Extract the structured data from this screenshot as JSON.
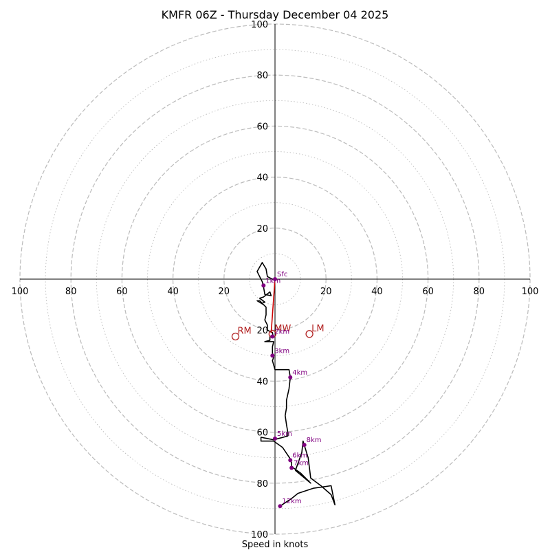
{
  "chart_data": {
    "type": "hodograph",
    "title": "KMFR 06Z - Thursday December 04 2025",
    "xlabel": "Speed in knots",
    "ylabel": "",
    "max_speed": 100,
    "major_rings": [
      20,
      40,
      60,
      80,
      100
    ],
    "minor_rings": [
      10,
      30,
      50,
      70,
      90
    ],
    "x_tick_labels": [
      "100",
      "80",
      "60",
      "40",
      "20",
      "20",
      "40",
      "60",
      "80",
      "100"
    ],
    "y_tick_labels": [
      "100",
      "80",
      "60",
      "40",
      "20",
      "20",
      "40",
      "60",
      "80",
      "100"
    ],
    "colors": {
      "trace": "#000000",
      "markers": "#800080",
      "storm": "#b22222",
      "shear_vector": "#cc0000",
      "grid": "#bbbbbb"
    },
    "trace_uv": [
      [
        0,
        -0.5
      ],
      [
        -3,
        1
      ],
      [
        -3.5,
        4
      ],
      [
        -5,
        6.5
      ],
      [
        -7,
        3
      ],
      [
        -6,
        1
      ],
      [
        -5,
        -1
      ],
      [
        -4.5,
        -3
      ],
      [
        -4,
        -6
      ],
      [
        -1.5,
        -6.5
      ],
      [
        -2,
        -5
      ],
      [
        -4.5,
        -7
      ],
      [
        -6,
        -7.5
      ],
      [
        -4,
        -9
      ],
      [
        -5,
        -9.5
      ],
      [
        -6,
        -8.5
      ],
      [
        -7,
        -8.5
      ],
      [
        -4.5,
        -10
      ],
      [
        -3.5,
        -11
      ],
      [
        -3.5,
        -14
      ],
      [
        -4,
        -16
      ],
      [
        -3,
        -18
      ],
      [
        -3,
        -20
      ],
      [
        -1,
        -21
      ],
      [
        -0.8,
        -22
      ],
      [
        -2,
        -22.5
      ],
      [
        -2,
        -24
      ],
      [
        -4,
        -24.5
      ],
      [
        -0.5,
        -24.5
      ],
      [
        -1,
        -26.5
      ],
      [
        -1,
        -29
      ],
      [
        -0.5,
        -30.5
      ],
      [
        -1,
        -32
      ],
      [
        0,
        -35.5
      ],
      [
        5.5,
        -35.5
      ],
      [
        6,
        -38.5
      ],
      [
        5.5,
        -43
      ],
      [
        4.5,
        -47.5
      ],
      [
        4.5,
        -50.5
      ],
      [
        4,
        -53.5
      ],
      [
        4.5,
        -57
      ],
      [
        5,
        -60
      ],
      [
        5,
        -61.5
      ],
      [
        -0.5,
        -63
      ],
      [
        -5.5,
        -62
      ],
      [
        -5.5,
        -63.5
      ],
      [
        -0.5,
        -63.5
      ],
      [
        3,
        -66
      ],
      [
        6,
        -70.5
      ],
      [
        6.5,
        -72
      ],
      [
        6.5,
        -73.5
      ],
      [
        10,
        -76
      ],
      [
        14,
        -80
      ],
      [
        8,
        -75
      ],
      [
        10.5,
        -68
      ],
      [
        11,
        -63.5
      ],
      [
        13,
        -70
      ],
      [
        13.5,
        -74
      ],
      [
        14,
        -78
      ],
      [
        18,
        -81
      ],
      [
        22,
        -84.5
      ],
      [
        23.5,
        -88.5
      ],
      [
        22,
        -81
      ],
      [
        15,
        -82
      ],
      [
        9,
        -84
      ],
      [
        6.5,
        -86
      ],
      [
        2,
        -89
      ]
    ],
    "height_markers": [
      {
        "label": "Sfc",
        "u": 0,
        "v": 0
      },
      {
        "label": "1km",
        "u": -4.5,
        "v": -2.5
      },
      {
        "label": "2km",
        "u": -1,
        "v": -22.5
      },
      {
        "label": "3km",
        "u": -1,
        "v": -30
      },
      {
        "label": "4km",
        "u": 6,
        "v": -38.5
      },
      {
        "label": "5km",
        "u": 0,
        "v": -62.5
      },
      {
        "label": "6km",
        "u": 6,
        "v": -71
      },
      {
        "label": "7km",
        "u": 6.5,
        "v": -74
      },
      {
        "label": "8km",
        "u": 11.5,
        "v": -65
      },
      {
        "label": "12km",
        "u": 2,
        "v": -89
      }
    ],
    "storm_motions": [
      {
        "label": "RM",
        "u": -15.5,
        "v": -22.5
      },
      {
        "label": "MW",
        "u": -1,
        "v": -21.5
      },
      {
        "label": "LM",
        "u": 13.5,
        "v": -21.5
      }
    ],
    "shear_vector": {
      "from": [
        0,
        0
      ],
      "to": [
        -1.5,
        -21
      ]
    }
  }
}
